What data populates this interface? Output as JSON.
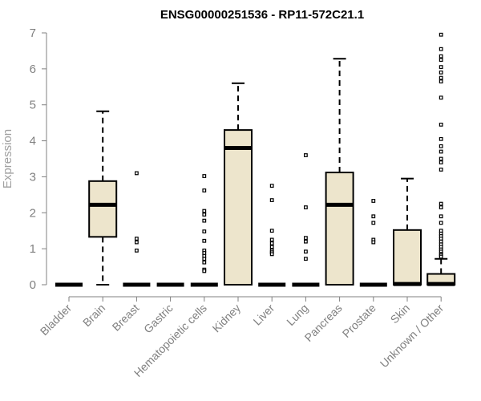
{
  "chart_data": {
    "type": "boxplot",
    "title": "ENSG00000251536 - RP11-572C21.1",
    "ylabel": "Expression",
    "xlabel": "",
    "ylim": [
      0,
      7
    ],
    "yticks": [
      0,
      1,
      2,
      3,
      4,
      5,
      6,
      7
    ],
    "colors": {
      "box_fill": "#ede5cc",
      "box_stroke": "#000000",
      "axis": "#808080"
    },
    "categories": [
      "Bladder",
      "Brain",
      "Breast",
      "Gastric",
      "Hematopoietic cells",
      "Kidney",
      "Liver",
      "Lung",
      "Pancreas",
      "Prostate",
      "Skin",
      "Unknown / Other"
    ],
    "boxes": [
      {
        "category": "Bladder",
        "min": 0,
        "q1": 0,
        "median": 0,
        "q3": 0,
        "max": 0,
        "outliers": []
      },
      {
        "category": "Brain",
        "min": 0,
        "q1": 1.33,
        "median": 2.22,
        "q3": 2.88,
        "max": 4.82,
        "outliers": []
      },
      {
        "category": "Breast",
        "min": 0,
        "q1": 0,
        "median": 0,
        "q3": 0,
        "max": 0,
        "outliers": [
          3.1,
          1.28,
          1.18,
          0.95
        ]
      },
      {
        "category": "Gastric",
        "min": 0,
        "q1": 0,
        "median": 0,
        "q3": 0,
        "max": 0,
        "outliers": []
      },
      {
        "category": "Hematopoietic cells",
        "min": 0,
        "q1": 0,
        "median": 0,
        "q3": 0,
        "max": 0,
        "outliers": [
          3.02,
          2.62,
          2.05,
          1.95,
          1.78,
          1.48,
          1.22,
          0.95,
          0.88,
          0.8,
          0.72,
          0.62,
          0.42,
          0.38
        ]
      },
      {
        "category": "Kidney",
        "min": 0,
        "q1": 0,
        "median": 3.8,
        "q3": 4.3,
        "max": 5.6,
        "outliers": []
      },
      {
        "category": "Liver",
        "min": 0,
        "q1": 0,
        "median": 0,
        "q3": 0,
        "max": 0,
        "outliers": [
          2.75,
          2.35,
          1.5,
          1.25,
          1.15,
          1.05,
          0.95,
          0.9,
          0.85
        ]
      },
      {
        "category": "Lung",
        "min": 0,
        "q1": 0,
        "median": 0,
        "q3": 0,
        "max": 0,
        "outliers": [
          3.6,
          2.15,
          1.3,
          1.2,
          0.92,
          0.72
        ]
      },
      {
        "category": "Pancreas",
        "min": 0,
        "q1": 0,
        "median": 2.22,
        "q3": 3.12,
        "max": 6.28,
        "outliers": []
      },
      {
        "category": "Prostate",
        "min": 0,
        "q1": 0,
        "median": 0,
        "q3": 0,
        "max": 0,
        "outliers": [
          2.33,
          1.9,
          1.72,
          1.25,
          1.18
        ]
      },
      {
        "category": "Skin",
        "min": 0,
        "q1": 0,
        "median": 0.02,
        "q3": 1.52,
        "max": 2.95,
        "outliers": []
      },
      {
        "category": "Unknown / Other",
        "min": 0,
        "q1": 0,
        "median": 0.02,
        "q3": 0.3,
        "max": 0.72,
        "outliers": [
          6.95,
          6.55,
          6.35,
          6.25,
          6.05,
          5.9,
          5.75,
          5.65,
          5.2,
          4.45,
          4.05,
          3.85,
          3.7,
          3.5,
          3.4,
          3.2,
          2.25,
          2.15,
          1.9,
          1.72,
          1.5,
          1.42,
          1.35,
          1.28,
          1.2,
          1.12,
          1.05,
          0.98,
          0.92,
          0.86,
          0.82,
          0.78
        ]
      }
    ]
  }
}
